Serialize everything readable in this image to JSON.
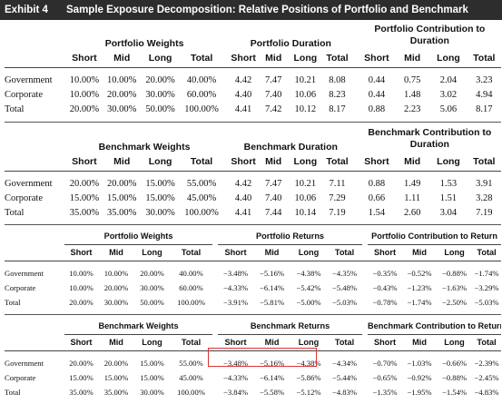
{
  "header": {
    "exhibit": "Exhibit 4",
    "title": "Sample Exposure Decomposition: Relative Positions of Portfolio and Benchmark"
  },
  "subheaders": [
    "Short",
    "Mid",
    "Long",
    "Total"
  ],
  "tables": [
    {
      "groups": [
        "Portfolio Weights",
        "Portfolio Duration",
        "Portfolio Contribution to Duration"
      ],
      "rows": [
        {
          "label": "Government",
          "cells": [
            "10.00%",
            "10.00%",
            "20.00%",
            "40.00%",
            "4.42",
            "7.47",
            "10.21",
            "8.08",
            "0.44",
            "0.75",
            "2.04",
            "3.23"
          ]
        },
        {
          "label": "Corporate",
          "cells": [
            "10.00%",
            "20.00%",
            "30.00%",
            "60.00%",
            "4.40",
            "7.40",
            "10.06",
            "8.23",
            "0.44",
            "1.48",
            "3.02",
            "4.94"
          ]
        },
        {
          "label": "Total",
          "cells": [
            "20.00%",
            "30.00%",
            "50.00%",
            "100.00%",
            "4.41",
            "7.42",
            "10.12",
            "8.17",
            "0.88",
            "2.23",
            "5.06",
            "8.17"
          ]
        }
      ]
    },
    {
      "groups": [
        "Benchmark Weights",
        "Benchmark Duration",
        "Benchmark Contribution to Duration"
      ],
      "rows": [
        {
          "label": "Government",
          "cells": [
            "20.00%",
            "20.00%",
            "15.00%",
            "55.00%",
            "4.42",
            "7.47",
            "10.21",
            "7.11",
            "0.88",
            "1.49",
            "1.53",
            "3.91"
          ]
        },
        {
          "label": "Corporate",
          "cells": [
            "15.00%",
            "15.00%",
            "15.00%",
            "45.00%",
            "4.40",
            "7.40",
            "10.06",
            "7.29",
            "0.66",
            "1.11",
            "1.51",
            "3.28"
          ]
        },
        {
          "label": "Total",
          "cells": [
            "35.00%",
            "35.00%",
            "30.00%",
            "100.00%",
            "4.41",
            "7.44",
            "10.14",
            "7.19",
            "1.54",
            "2.60",
            "3.04",
            "7.19"
          ]
        }
      ]
    },
    {
      "groups": [
        "Portfolio Weights",
        "Portfolio Returns",
        "Portfolio Contribution to Return"
      ],
      "rows": [
        {
          "label": "Government",
          "cells": [
            "10.00%",
            "10.00%",
            "20.00%",
            "40.00%",
            "−3.48%",
            "−5.16%",
            "−4.38%",
            "−4.35%",
            "−0.35%",
            "−0.52%",
            "−0.88%",
            "−1.74%"
          ]
        },
        {
          "label": "Corporate",
          "cells": [
            "10.00%",
            "20.00%",
            "30.00%",
            "60.00%",
            "−4.33%",
            "−6.14%",
            "−5.42%",
            "−5.48%",
            "−0.43%",
            "−1.23%",
            "−1.63%",
            "−3.29%"
          ]
        },
        {
          "label": "Total",
          "cells": [
            "20.00%",
            "30.00%",
            "50.00%",
            "100.00%",
            "−3.91%",
            "−5.81%",
            "−5.00%",
            "−5.03%",
            "−0.78%",
            "−1.74%",
            "−2.50%",
            "−5.03%"
          ]
        }
      ]
    },
    {
      "groups": [
        "Benchmark Weights",
        "Benchmark Returns",
        "Benchmark Contribution to Return"
      ],
      "rows": [
        {
          "label": "Government",
          "cells": [
            "20.00%",
            "20.00%",
            "15.00%",
            "55.00%",
            "−3.48%",
            "−5.16%",
            "−4.38%",
            "−4.34%",
            "−0.70%",
            "−1.03%",
            "−0.66%",
            "−2.39%"
          ]
        },
        {
          "label": "Corporate",
          "cells": [
            "15.00%",
            "15.00%",
            "15.00%",
            "45.00%",
            "−4.33%",
            "−6.14%",
            "−5.86%",
            "−5.44%",
            "−0.65%",
            "−0.92%",
            "−0.88%",
            "−2.45%"
          ]
        },
        {
          "label": "Total",
          "cells": [
            "35.00%",
            "35.00%",
            "30.00%",
            "100.00%",
            "−3.84%",
            "−5.58%",
            "−5.12%",
            "−4.83%",
            "−1.35%",
            "−1.95%",
            "−1.54%",
            "−4.83%"
          ]
        }
      ]
    }
  ]
}
